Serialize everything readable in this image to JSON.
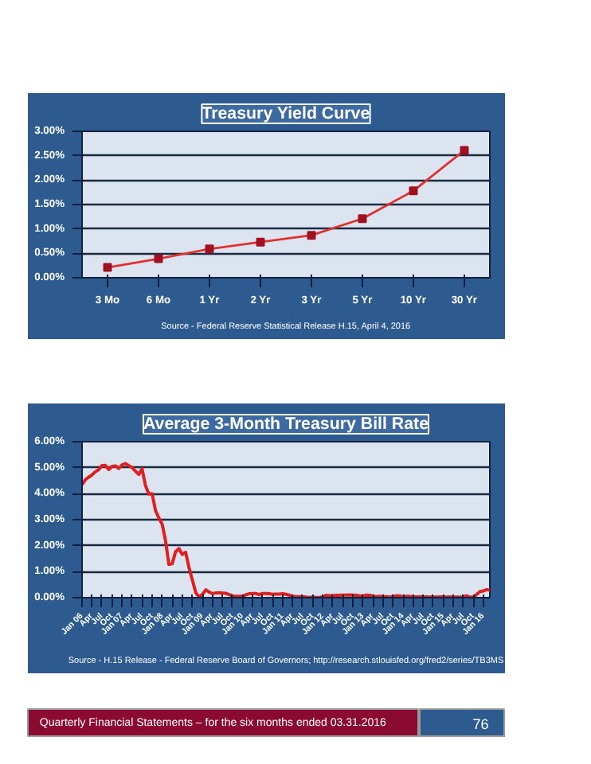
{
  "chart_data": [
    {
      "type": "line",
      "title": "Treasury Yield Curve",
      "annotations": [
        "Source - Federal Reserve Statistical Release H.15, April 4, 2016"
      ],
      "categories": [
        "3 Mo",
        "6 Mo",
        "1 Yr",
        "2 Yr",
        "3 Yr",
        "5 Yr",
        "10 Yr",
        "30 Yr"
      ],
      "series": [
        {
          "color": "#e03030",
          "values": [
            0.21,
            0.39,
            0.59,
            0.73,
            0.87,
            1.21,
            1.78,
            2.61
          ]
        }
      ],
      "marker": "square",
      "ylim": [
        0,
        3
      ],
      "yticks": [
        {
          "value": 0,
          "label": "0.00%"
        },
        {
          "value": 0.5,
          "label": "0.50%"
        },
        {
          "value": 1,
          "label": "1.00%"
        },
        {
          "value": 1.5,
          "label": "1.50%"
        },
        {
          "value": 2,
          "label": "2.00%"
        },
        {
          "value": 2.5,
          "label": "2.50%"
        },
        {
          "value": 3,
          "label": "3.00%"
        }
      ],
      "grid": "y"
    },
    {
      "type": "line",
      "title": "Average 3-Month Treasury Bill Rate",
      "annotations": [
        "Source - H.15 Release - Federal Reserve Board of Governors; http://research.stlouisfed.org/fred2/series/TB3MS"
      ],
      "x": [
        "2006-01",
        "2006-02",
        "2006-03",
        "2006-04",
        "2006-05",
        "2006-06",
        "2006-07",
        "2006-08",
        "2006-09",
        "2006-10",
        "2006-11",
        "2006-12",
        "2007-01",
        "2007-02",
        "2007-03",
        "2007-04",
        "2007-05",
        "2007-06",
        "2007-07",
        "2007-08",
        "2007-09",
        "2007-10",
        "2007-11",
        "2007-12",
        "2008-01",
        "2008-02",
        "2008-03",
        "2008-04",
        "2008-05",
        "2008-06",
        "2008-07",
        "2008-08",
        "2008-09",
        "2008-10",
        "2008-11",
        "2008-12",
        "2009-01",
        "2009-02",
        "2009-03",
        "2009-04",
        "2009-05",
        "2009-06",
        "2009-07",
        "2009-08",
        "2009-09",
        "2009-10",
        "2009-11",
        "2009-12",
        "2010-01",
        "2010-02",
        "2010-03",
        "2010-04",
        "2010-05",
        "2010-06",
        "2010-07",
        "2010-08",
        "2010-09",
        "2010-10",
        "2010-11",
        "2010-12",
        "2011-01",
        "2011-02",
        "2011-03",
        "2011-04",
        "2011-05",
        "2011-06",
        "2011-07",
        "2011-08",
        "2011-09",
        "2011-10",
        "2011-11",
        "2011-12",
        "2012-01",
        "2012-02",
        "2012-03",
        "2012-04",
        "2012-05",
        "2012-06",
        "2012-07",
        "2012-08",
        "2012-09",
        "2012-10",
        "2012-11",
        "2012-12",
        "2013-01",
        "2013-02",
        "2013-03",
        "2013-04",
        "2013-05",
        "2013-06",
        "2013-07",
        "2013-08",
        "2013-09",
        "2013-10",
        "2013-11",
        "2013-12",
        "2014-01",
        "2014-02",
        "2014-03",
        "2014-04",
        "2014-05",
        "2014-06",
        "2014-07",
        "2014-08",
        "2014-09",
        "2014-10",
        "2014-11",
        "2014-12",
        "2015-01",
        "2015-02",
        "2015-03",
        "2015-04",
        "2015-05",
        "2015-06",
        "2015-07",
        "2015-08",
        "2015-09",
        "2015-10",
        "2015-11",
        "2015-12",
        "2016-01",
        "2016-02",
        "2016-03"
      ],
      "series": [
        {
          "color": "#e02020",
          "values": [
            4.34,
            4.54,
            4.63,
            4.72,
            4.84,
            4.92,
            5.08,
            5.09,
            4.93,
            5.05,
            5.07,
            4.97,
            5.11,
            5.16,
            5.08,
            5.01,
            4.87,
            4.74,
            4.96,
            4.32,
            3.99,
            4.0,
            3.35,
            3.07,
            2.82,
            2.17,
            1.28,
            1.31,
            1.76,
            1.89,
            1.66,
            1.75,
            1.15,
            0.69,
            0.19,
            0.03,
            0.13,
            0.3,
            0.22,
            0.16,
            0.18,
            0.18,
            0.18,
            0.17,
            0.12,
            0.07,
            0.05,
            0.05,
            0.06,
            0.11,
            0.15,
            0.16,
            0.16,
            0.12,
            0.16,
            0.16,
            0.15,
            0.13,
            0.14,
            0.14,
            0.15,
            0.13,
            0.1,
            0.06,
            0.04,
            0.04,
            0.04,
            0.02,
            0.01,
            0.02,
            0.01,
            0.01,
            0.03,
            0.09,
            0.08,
            0.08,
            0.09,
            0.09,
            0.1,
            0.1,
            0.11,
            0.1,
            0.09,
            0.07,
            0.07,
            0.1,
            0.09,
            0.06,
            0.04,
            0.05,
            0.04,
            0.04,
            0.02,
            0.05,
            0.07,
            0.07,
            0.04,
            0.05,
            0.05,
            0.03,
            0.03,
            0.04,
            0.03,
            0.03,
            0.02,
            0.02,
            0.02,
            0.03,
            0.03,
            0.02,
            0.03,
            0.02,
            0.02,
            0.02,
            0.03,
            0.07,
            0.02,
            0.02,
            0.12,
            0.23,
            0.26,
            0.31,
            0.29
          ]
        }
      ],
      "marker": "none",
      "xlim": [
        "2006-01",
        "2016-03"
      ],
      "xticks": [
        {
          "value": "2006-01",
          "label": "Jan 06"
        },
        {
          "value": "2006-04",
          "label": "Apr"
        },
        {
          "value": "2006-07",
          "label": "Jul"
        },
        {
          "value": "2006-10",
          "label": "Oct"
        },
        {
          "value": "2007-01",
          "label": "Jan 07"
        },
        {
          "value": "2007-04",
          "label": "Apr"
        },
        {
          "value": "2007-07",
          "label": "Jul"
        },
        {
          "value": "2007-10",
          "label": "Oct"
        },
        {
          "value": "2008-01",
          "label": "Jan 08"
        },
        {
          "value": "2008-04",
          "label": "Apr"
        },
        {
          "value": "2008-07",
          "label": "Jul"
        },
        {
          "value": "2008-10",
          "label": "Oct"
        },
        {
          "value": "2009-01",
          "label": "Jan 09"
        },
        {
          "value": "2009-04",
          "label": "Apr"
        },
        {
          "value": "2009-07",
          "label": "Jul"
        },
        {
          "value": "2009-10",
          "label": "Oct"
        },
        {
          "value": "2010-01",
          "label": "Jan 10"
        },
        {
          "value": "2010-04",
          "label": "Apr"
        },
        {
          "value": "2010-07",
          "label": "Jul"
        },
        {
          "value": "2010-10",
          "label": "Oct"
        },
        {
          "value": "2011-01",
          "label": "Jan 11"
        },
        {
          "value": "2011-04",
          "label": "Apr"
        },
        {
          "value": "2011-07",
          "label": "Jul"
        },
        {
          "value": "2011-10",
          "label": "Oct"
        },
        {
          "value": "2012-01",
          "label": "Jan 12"
        },
        {
          "value": "2012-04",
          "label": "Apr"
        },
        {
          "value": "2012-07",
          "label": "Jul"
        },
        {
          "value": "2012-10",
          "label": "Oct"
        },
        {
          "value": "2013-01",
          "label": "Jan 13"
        },
        {
          "value": "2013-04",
          "label": "Apr"
        },
        {
          "value": "2013-07",
          "label": "Jul"
        },
        {
          "value": "2013-10",
          "label": "Oct"
        },
        {
          "value": "2014-01",
          "label": "Jan 14"
        },
        {
          "value": "2014-04",
          "label": "Apr"
        },
        {
          "value": "2014-07",
          "label": "Jul"
        },
        {
          "value": "2014-10",
          "label": "Oct"
        },
        {
          "value": "2015-01",
          "label": "Jan 15"
        },
        {
          "value": "2015-04",
          "label": "Apr"
        },
        {
          "value": "2015-07",
          "label": "Jul"
        },
        {
          "value": "2015-10",
          "label": "Oct"
        },
        {
          "value": "2016-01",
          "label": "Jan 16"
        }
      ],
      "ylim": [
        0,
        6
      ],
      "yticks": [
        {
          "value": 0,
          "label": "0.00%"
        },
        {
          "value": 1,
          "label": "1.00%"
        },
        {
          "value": 2,
          "label": "2.00%"
        },
        {
          "value": 3,
          "label": "3.00%"
        },
        {
          "value": 4,
          "label": "4.00%"
        },
        {
          "value": 5,
          "label": "5.00%"
        },
        {
          "value": 6,
          "label": "6.00%"
        }
      ],
      "grid": "y"
    },
    {
      "type": "other",
      "annotations": [
        "Quarterly Financial Statements – for the six months ended 03.31.2016",
        "76"
      ]
    }
  ]
}
